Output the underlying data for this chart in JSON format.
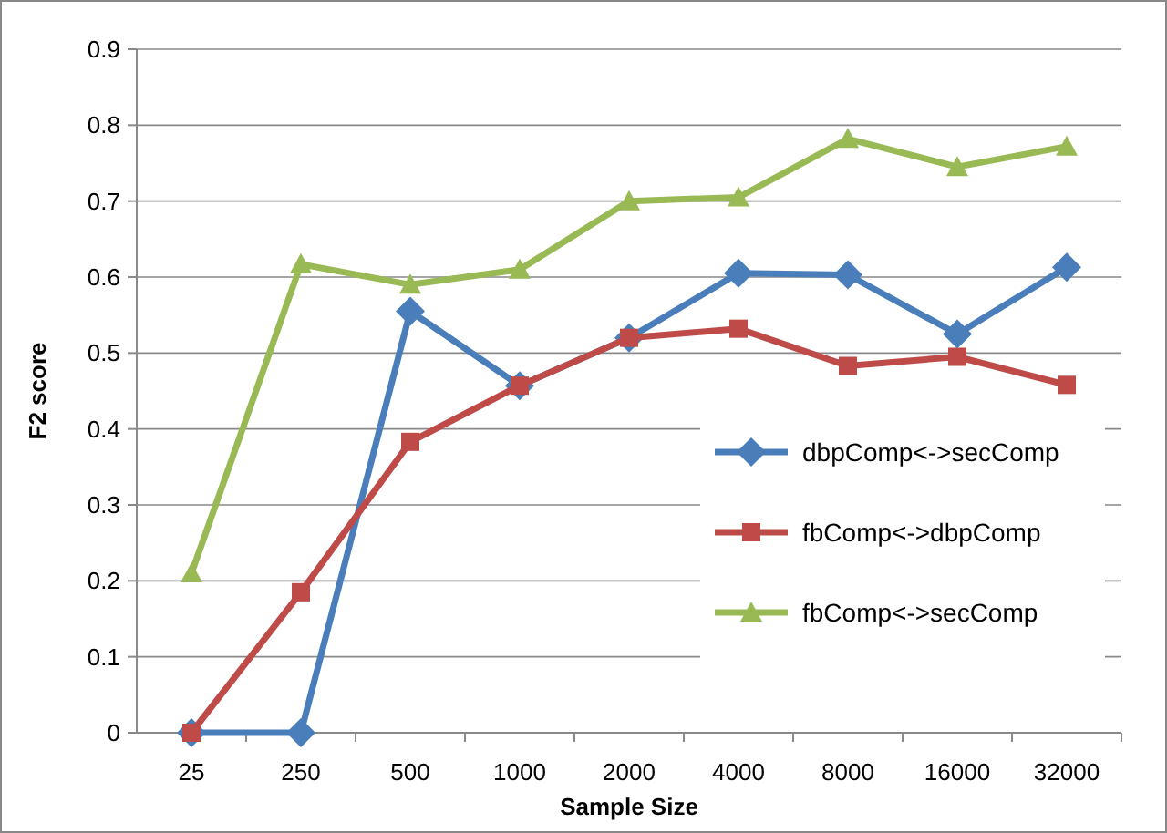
{
  "chart_data": {
    "type": "line",
    "xlabel": "Sample Size",
    "ylabel": "F2 score",
    "categories": [
      "25",
      "250",
      "500",
      "1000",
      "2000",
      "4000",
      "8000",
      "16000",
      "32000"
    ],
    "series": [
      {
        "name": "dbpComp<->secComp",
        "color": "#4a7ebb",
        "marker": "diamond",
        "values": [
          0,
          0,
          0.555,
          0.457,
          0.52,
          0.605,
          0.603,
          0.525,
          0.613
        ]
      },
      {
        "name": "fbComp<->dbpComp",
        "color": "#be4b48",
        "marker": "square",
        "values": [
          0,
          0.185,
          0.383,
          0.457,
          0.52,
          0.532,
          0.483,
          0.495,
          0.458
        ]
      },
      {
        "name": "fbComp<->secComp",
        "color": "#98b954",
        "marker": "triangle",
        "values": [
          0.21,
          0.617,
          0.59,
          0.61,
          0.7,
          0.705,
          0.782,
          0.745,
          0.772
        ]
      }
    ],
    "ylim": [
      0,
      0.9
    ],
    "yticks": [
      0,
      0.1,
      0.2,
      0.3,
      0.4,
      0.5,
      0.6,
      0.7,
      0.8,
      0.9
    ],
    "grid": "y",
    "legend": "right"
  }
}
